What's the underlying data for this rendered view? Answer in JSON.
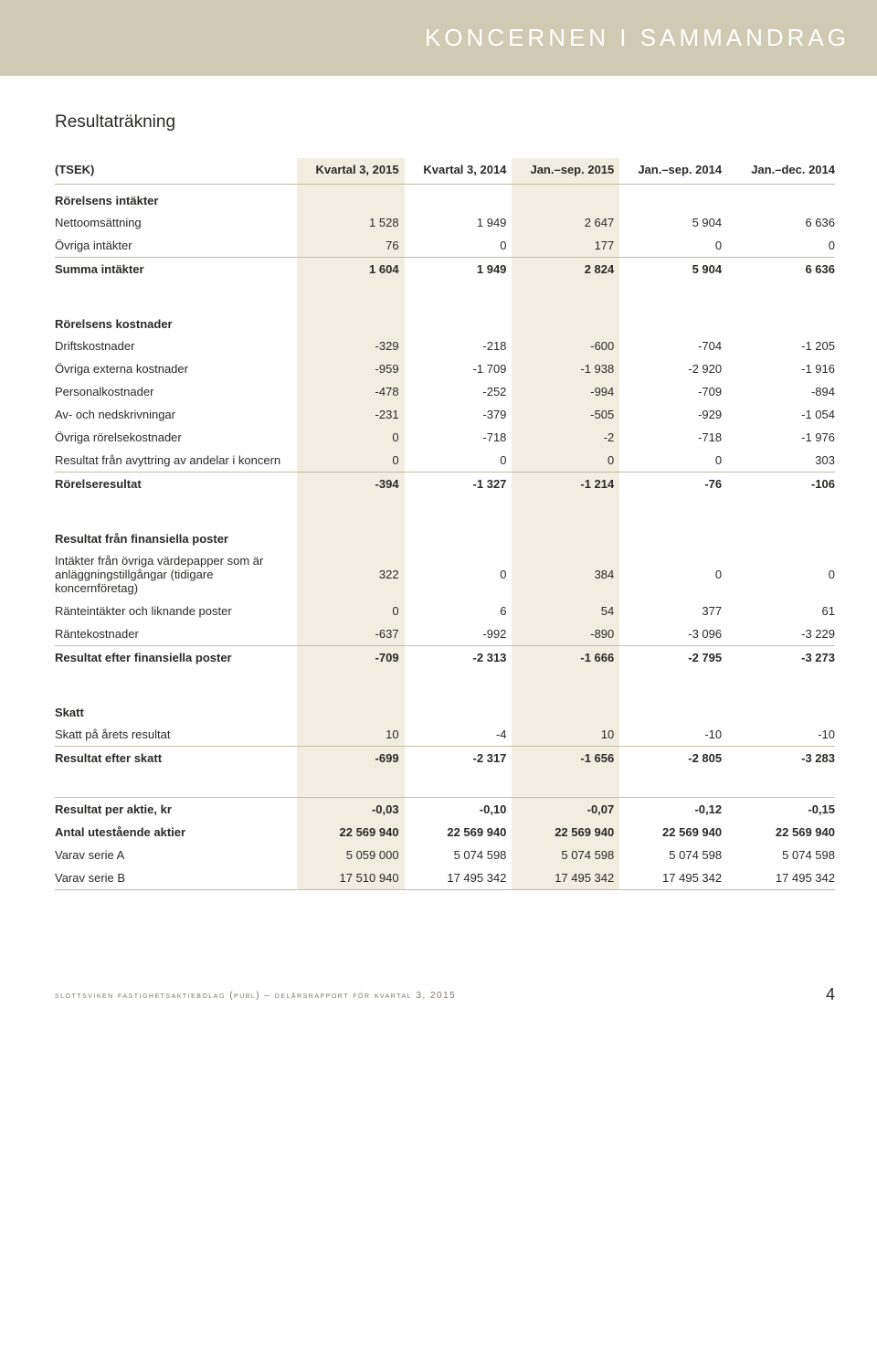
{
  "header_title": "KONCERNEN I SAMMANDRAG",
  "section_title": "Resultaträkning",
  "columns": {
    "label": "(TSEK)",
    "c1": "Kvartal 3, 2015",
    "c2": "Kvartal 3, 2014",
    "c3": "Jan.–sep. 2015",
    "c4": "Jan.–sep. 2014",
    "c5": "Jan.–dec. 2014"
  },
  "sections": [
    {
      "heading": "Rörelsens intäkter",
      "rows": [
        {
          "label": "Nettoomsättning",
          "v": [
            "1 528",
            "1 949",
            "2 647",
            "5 904",
            "6 636"
          ]
        },
        {
          "label": "Övriga intäkter",
          "v": [
            "76",
            "0",
            "177",
            "0",
            "0"
          ],
          "rule": true
        },
        {
          "label": "Summa intäkter",
          "v": [
            "1 604",
            "1 949",
            "2 824",
            "5 904",
            "6 636"
          ],
          "bold": true
        }
      ]
    },
    {
      "heading": "Rörelsens kostnader",
      "rows": [
        {
          "label": "Driftskostnader",
          "v": [
            "-329",
            "-218",
            "-600",
            "-704",
            "-1 205"
          ]
        },
        {
          "label": "Övriga externa kostnader",
          "v": [
            "-959",
            "-1 709",
            "-1 938",
            "-2 920",
            "-1 916"
          ]
        },
        {
          "label": "Personalkostnader",
          "v": [
            "-478",
            "-252",
            "-994",
            "-709",
            "-894"
          ]
        },
        {
          "label": "Av- och nedskrivningar",
          "v": [
            "-231",
            "-379",
            "-505",
            "-929",
            "-1 054"
          ]
        },
        {
          "label": "Övriga rörelsekostnader",
          "v": [
            "0",
            "-718",
            "-2",
            "-718",
            "-1 976"
          ]
        },
        {
          "label": "Resultat från avyttring av andelar i koncern",
          "v": [
            "0",
            "0",
            "0",
            "0",
            "303"
          ],
          "rule": true
        },
        {
          "label": "Rörelseresultat",
          "v": [
            "-394",
            "-1 327",
            "-1 214",
            "-76",
            "-106"
          ],
          "bold": true
        }
      ]
    },
    {
      "heading": "Resultat från finansiella poster",
      "rows": [
        {
          "label": "Intäkter från övriga värdepapper som är anläggningstillgångar (tidigare koncernföretag)",
          "v": [
            "322",
            "0",
            "384",
            "0",
            "0"
          ]
        },
        {
          "label": "Ränteintäkter och liknande poster",
          "v": [
            "0",
            "6",
            "54",
            "377",
            "61"
          ]
        },
        {
          "label": "Räntekostnader",
          "v": [
            "-637",
            "-992",
            "-890",
            "-3 096",
            "-3 229"
          ],
          "rule": true
        },
        {
          "label": "Resultat efter finansiella poster",
          "v": [
            "-709",
            "-2 313",
            "-1 666",
            "-2 795",
            "-3 273"
          ],
          "bold": true
        }
      ]
    },
    {
      "heading": "Skatt",
      "rows": [
        {
          "label": "Skatt på årets resultat",
          "v": [
            "10",
            "-4",
            "10",
            "-10",
            "-10"
          ],
          "rule": true
        },
        {
          "label": "Resultat efter skatt",
          "v": [
            "-699",
            "-2 317",
            "-1 656",
            "-2 805",
            "-3 283"
          ],
          "bold": true
        }
      ]
    },
    {
      "heading": "",
      "rows": [
        {
          "label": "Resultat per aktie, kr",
          "v": [
            "-0,03",
            "-0,10",
            "-0,07",
            "-0,12",
            "-0,15"
          ],
          "bold": true,
          "ruletop": true
        },
        {
          "label": "Antal utestående aktier",
          "v": [
            "22 569 940",
            "22 569 940",
            "22 569 940",
            "22 569 940",
            "22 569 940"
          ],
          "bold": true
        },
        {
          "label": "Varav serie A",
          "v": [
            "5 059 000",
            "5 074 598",
            "5 074 598",
            "5 074 598",
            "5 074 598"
          ]
        },
        {
          "label": "Varav serie B",
          "v": [
            "17 510 940",
            "17 495 342",
            "17 495 342",
            "17 495 342",
            "17 495 342"
          ],
          "rule": true
        }
      ]
    }
  ],
  "footer": "slottsviken fastighetsaktiebolag (publ) – delårsrapport för kvartal 3, 2015",
  "page_number": "4",
  "colors": {
    "band": "#d0c9b3",
    "shade": "#f1ede1",
    "rule": "#c3bca4"
  }
}
